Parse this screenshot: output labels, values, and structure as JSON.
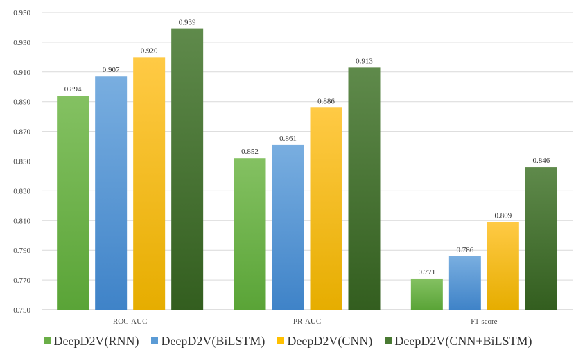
{
  "chart_data": {
    "type": "bar",
    "title": "",
    "xlabel": "",
    "ylabel": "",
    "categories": [
      "ROC-AUC",
      "PR-AUC",
      "F1-score"
    ],
    "ylim": [
      0.75,
      0.95
    ],
    "yticks": [
      "0.750",
      "0.770",
      "0.790",
      "0.810",
      "0.830",
      "0.850",
      "0.870",
      "0.890",
      "0.910",
      "0.930",
      "0.950"
    ],
    "grid": true,
    "legend_position": "bottom",
    "series": [
      {
        "name": "DeepD2V(RNN)",
        "color": "#6aae47",
        "values": [
          0.894,
          0.852,
          0.771
        ],
        "labels": [
          "0.894",
          "0.852",
          "0.771"
        ]
      },
      {
        "name": "DeepD2V(BiLSTM)",
        "color": "#5b9bd5",
        "values": [
          0.907,
          0.861,
          0.786
        ],
        "labels": [
          "0.907",
          "0.861",
          "0.786"
        ]
      },
      {
        "name": "DeepD2V(CNN)",
        "color": "#ffc000",
        "values": [
          0.92,
          0.886,
          0.809
        ],
        "labels": [
          "0.920",
          "0.886",
          "0.809"
        ]
      },
      {
        "name": "DeepD2V(CNN+BiLSTM)",
        "color": "#4a7a33",
        "values": [
          0.939,
          0.913,
          0.846
        ],
        "labels": [
          "0.939",
          "0.913",
          "0.846"
        ]
      }
    ]
  }
}
